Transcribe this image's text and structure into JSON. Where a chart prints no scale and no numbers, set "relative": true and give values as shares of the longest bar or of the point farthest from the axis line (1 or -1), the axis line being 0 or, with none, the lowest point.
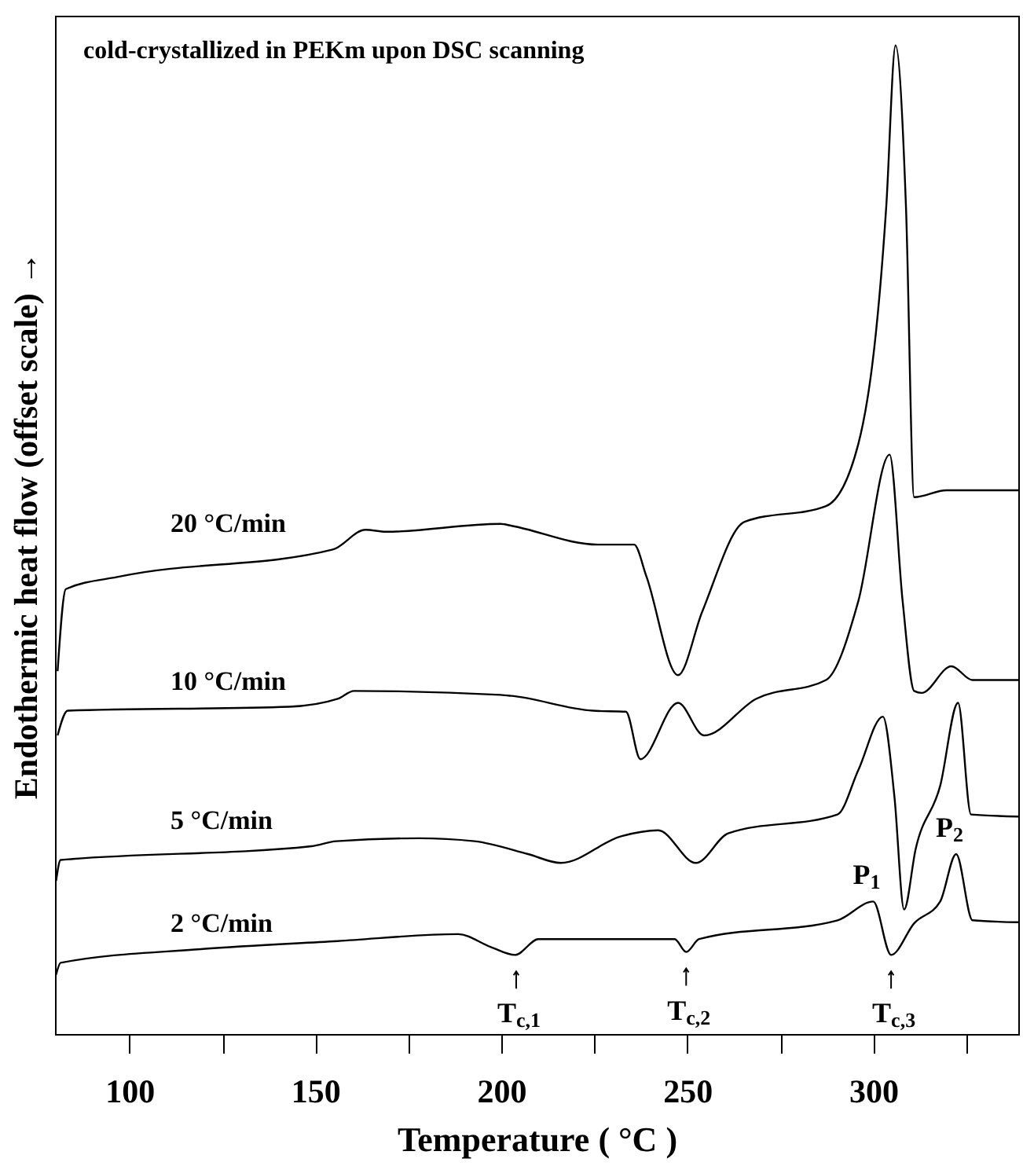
{
  "chart_data": {
    "type": "line",
    "relative": true,
    "title": "cold-crystallized in PEKm upon DSC scanning",
    "xlabel": "Temperature ( °C )",
    "ylabel": "Endothermic heat flow (offset scale) →",
    "xlim": [
      80,
      339
    ],
    "xticks": [
      100,
      {
        "value": 125,
        "label": null
      },
      150,
      {
        "value": 175,
        "label": null
      },
      200,
      {
        "value": 225,
        "label": null
      },
      250,
      {
        "value": 275,
        "label": null
      },
      300,
      {
        "value": 325,
        "label": null
      }
    ],
    "grid": false,
    "marker": "none",
    "line_style": "solid",
    "series": [
      {
        "name": "20 °C/min",
        "color": "#000000",
        "x": [
          80.7,
          82.9,
          97.8,
          154.7,
          163.5,
          169,
          199.8,
          202.8,
          226,
          235.7,
          239,
          247.5,
          254,
          265.4,
          287.3,
          296,
          303.5,
          306,
          308.8,
          311,
          319.7,
          339
        ],
        "values": [
          0.367,
          0.45,
          0.463,
          0.49,
          0.51,
          0.508,
          0.516,
          0.514,
          0.495,
          0.495,
          0.463,
          0.363,
          0.427,
          0.518,
          0.534,
          0.597,
          0.837,
          1,
          0.837,
          0.543,
          0.55,
          0.55
        ]
      },
      {
        "name": "10 °C/min",
        "color": "#000000",
        "x": [
          80.7,
          83.4,
          142.9,
          156,
          160.4,
          199.8,
          202.8,
          224.7,
          233.5,
          237.4,
          247.5,
          254.5,
          268.5,
          287.3,
          296,
          304.4,
          307.9,
          311,
          313,
          321,
          326.7,
          339
        ],
        "values": [
          0.302,
          0.327,
          0.331,
          0.339,
          0.347,
          0.343,
          0.342,
          0.327,
          0.326,
          0.278,
          0.335,
          0.302,
          0.339,
          0.358,
          0.438,
          0.586,
          0.438,
          0.347,
          0.345,
          0.372,
          0.358,
          0.358
        ]
      },
      {
        "name": "5 °C/min",
        "color": "#000000",
        "x": [
          80.3,
          81.5,
          84.7,
          149,
          155.6,
          177.9,
          192.8,
          207.2,
          216,
          232.2,
          242.2,
          252.3,
          261,
          290.4,
          296,
          302.6,
          305.7,
          308.3,
          311.4,
          318,
          322.8,
          326.3,
          339
        ],
        "values": [
          0.155,
          0.176,
          0.177,
          0.19,
          0.195,
          0.198,
          0.195,
          0.182,
          0.173,
          0.2,
          0.206,
          0.173,
          0.203,
          0.222,
          0.267,
          0.321,
          0.24,
          0.126,
          0.187,
          0.251,
          0.335,
          0.222,
          0.22
        ]
      },
      {
        "name": "2 °C/min",
        "color": "#000000",
        "x": [
          80.3,
          81.5,
          119.7,
          156,
          188.4,
          197.2,
          203.7,
          210,
          246.6,
          249.7,
          253.2,
          290.4,
          300,
          304.8,
          311,
          318,
          322.3,
          326.7,
          339
        ],
        "values": [
          0.06,
          0.072,
          0.086,
          0.094,
          0.101,
          0.088,
          0.08,
          0.096,
          0.096,
          0.083,
          0.096,
          0.115,
          0.134,
          0.08,
          0.112,
          0.134,
          0.182,
          0.115,
          0.113
        ]
      }
    ],
    "annotations": [
      {
        "text": "T$_{c,1}$",
        "x": 204,
        "y": 0.08
      },
      {
        "text": "T$_{c,2}$",
        "x": 249.7,
        "y": 0.083
      },
      {
        "text": "T$_{c,3}$",
        "x": 304.8,
        "y": 0.08
      },
      {
        "text": "P$_{1}$",
        "x": 300,
        "y": 0.134
      },
      {
        "text": "P$_{2}$",
        "x": 322.3,
        "y": 0.182
      }
    ]
  }
}
